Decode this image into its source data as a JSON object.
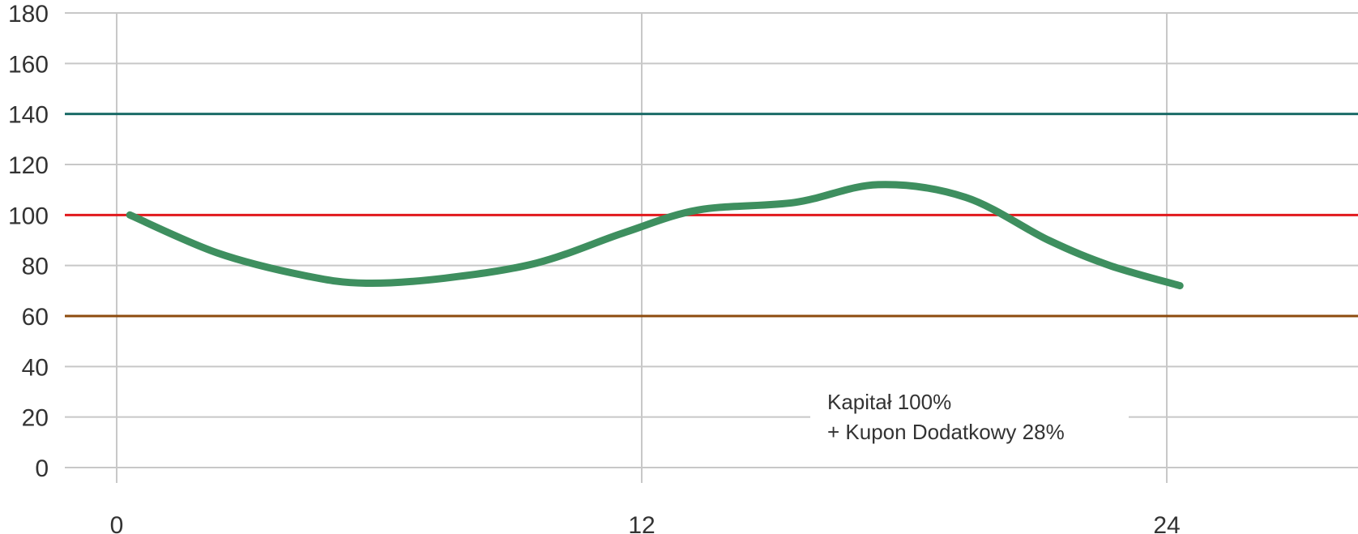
{
  "chart_data": {
    "type": "line",
    "xlabel": "",
    "ylabel": "",
    "xlim": [
      -1,
      28.5
    ],
    "ylim": [
      0,
      180
    ],
    "x_ticks": [
      "0",
      "12",
      "24"
    ],
    "y_ticks": [
      "0",
      "20",
      "40",
      "60",
      "80",
      "100",
      "120",
      "140",
      "160",
      "180"
    ],
    "grid": true,
    "series": [
      {
        "color": "#3e8f5f",
        "x": [
          0.3,
          2.3,
          4.3,
          5.7,
          7.5,
          9.6,
          11.6,
          13.3,
          15.5,
          17.4,
          19.4,
          21.3,
          22.7,
          24.3
        ],
        "y": [
          100,
          85,
          76,
          73,
          75,
          81,
          93,
          102,
          105,
          112,
          107,
          90,
          80,
          72
        ]
      }
    ],
    "reference_lines": [
      {
        "y": 140,
        "color": "#1a6b67"
      },
      {
        "y": 100,
        "color": "#e1191d"
      },
      {
        "y": 60,
        "color": "#8d4b0e"
      }
    ],
    "annotation": {
      "lines": [
        "Kapitał 100%",
        "+ Kupon Dodatkowy 28%"
      ]
    }
  }
}
